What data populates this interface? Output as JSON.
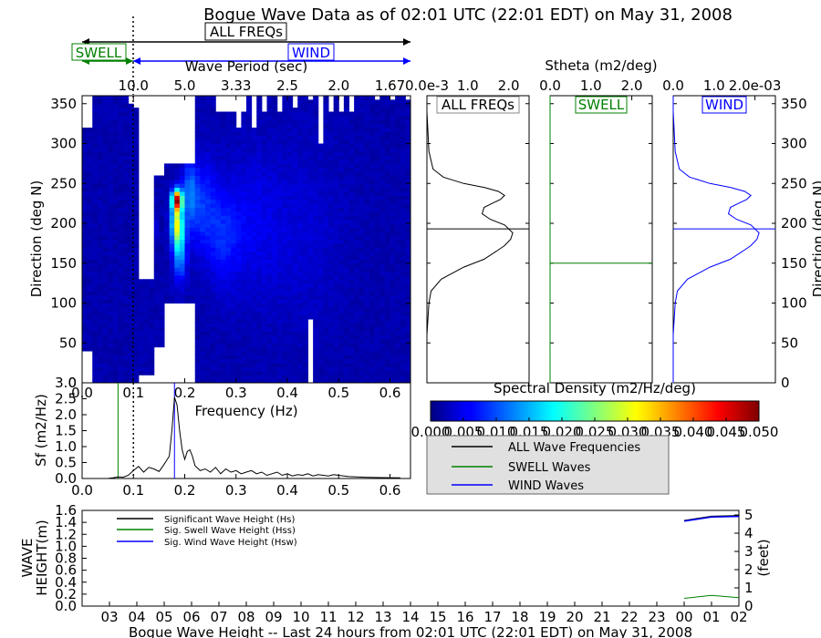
{
  "title": "Bogue Wave Data as of 02:01 UTC (22:01 EDT) on May 31, 2008",
  "colors": {
    "all": "#000000",
    "swell": "#008000",
    "wind": "#0000ff"
  },
  "arrows": {
    "all_label": "ALL FREQs",
    "swell_label": "SWELL",
    "wind_label": "WIND"
  },
  "chart_data": [
    {
      "id": "directional-spectrum",
      "type": "heatmap",
      "xlabel": "Frequency (Hz)",
      "ylabel": "Direction (deg N)",
      "top_axis_label": "Wave Period (sec)",
      "top_ticks": [
        "10.0",
        "5.0",
        "3.33",
        "2.5",
        "2.0",
        "1.67"
      ],
      "top_tick_freqs": [
        0.1,
        0.2,
        0.3,
        0.4,
        0.5,
        0.6
      ],
      "xlim": [
        0.0,
        0.64
      ],
      "ylim": [
        0,
        360
      ],
      "x_ticks": [
        "0.0",
        "0.1",
        "0.2",
        "0.3",
        "0.4",
        "0.5",
        "0.6"
      ],
      "y_ticks": [
        "0",
        "50",
        "100",
        "150",
        "200",
        "250",
        "300",
        "350"
      ],
      "colormap": "jet",
      "cmin": 0.0,
      "cmax": 0.05,
      "swell_separation_hz": 0.1,
      "peak": {
        "freq_hz": 0.185,
        "dir_deg": 228,
        "value": 0.04
      }
    },
    {
      "id": "frequency-spectrum",
      "type": "line",
      "xlabel": "Frequency (Hz)",
      "ylabel": "Sf (m2/Hz)",
      "xlim": [
        0.0,
        0.64
      ],
      "ylim": [
        0.0,
        3.0
      ],
      "x_ticks": [
        "0.0",
        "0.1",
        "0.2",
        "0.3",
        "0.4",
        "0.5",
        "0.6"
      ],
      "y_ticks": [
        "0.0",
        "0.5",
        "1.0",
        "1.5",
        "2.0",
        "2.5",
        "3.0"
      ],
      "markers": {
        "swell_peak_hz": 0.07,
        "wind_peak_hz": 0.18,
        "separation_hz": 0.1
      },
      "series": [
        {
          "name": "ALL Wave Frequencies",
          "x": [
            0.0,
            0.03,
            0.05,
            0.06,
            0.07,
            0.08,
            0.09,
            0.1,
            0.11,
            0.12,
            0.13,
            0.14,
            0.15,
            0.16,
            0.17,
            0.175,
            0.18,
            0.185,
            0.19,
            0.195,
            0.2,
            0.205,
            0.21,
            0.215,
            0.22,
            0.23,
            0.24,
            0.25,
            0.26,
            0.27,
            0.28,
            0.29,
            0.3,
            0.31,
            0.32,
            0.33,
            0.34,
            0.35,
            0.36,
            0.37,
            0.38,
            0.39,
            0.4,
            0.41,
            0.42,
            0.43,
            0.44,
            0.45,
            0.46,
            0.47,
            0.48,
            0.49,
            0.5,
            0.52,
            0.55,
            0.58,
            0.62
          ],
          "y": [
            0.0,
            0.0,
            0.0,
            0.02,
            0.05,
            0.04,
            0.1,
            0.25,
            0.38,
            0.2,
            0.35,
            0.3,
            0.22,
            0.45,
            0.7,
            1.5,
            2.55,
            2.3,
            1.5,
            0.9,
            0.6,
            0.85,
            0.9,
            0.7,
            0.4,
            0.25,
            0.3,
            0.2,
            0.35,
            0.15,
            0.3,
            0.2,
            0.25,
            0.15,
            0.2,
            0.25,
            0.15,
            0.2,
            0.1,
            0.15,
            0.2,
            0.1,
            0.15,
            0.08,
            0.12,
            0.1,
            0.15,
            0.08,
            0.12,
            0.1,
            0.08,
            0.12,
            0.1,
            0.06,
            0.04,
            0.03,
            0.02
          ]
        }
      ]
    },
    {
      "id": "stheta-all",
      "type": "line",
      "axis_label": "Stheta (m2/deg)",
      "panel_label": "ALL FREQs",
      "xlim": [
        0.0,
        0.0025
      ],
      "ylim": [
        0,
        360
      ],
      "x_ticks": [
        "0.0e-3",
        "1.0",
        "2.0"
      ],
      "x_tick_values": [
        0.0,
        0.001,
        0.002
      ],
      "mean_direction_deg": 193,
      "series": [
        {
          "name": "ALL Wave Frequencies",
          "x": [
            0.0,
            0.0,
            5e-05,
            0.0001,
            0.00035,
            0.0009,
            0.0014,
            0.0017,
            0.0019,
            0.00205,
            0.0021,
            0.0019,
            0.00155,
            0.00135,
            0.0014,
            0.0016,
            0.0018,
            0.0019,
            0.00175,
            0.0014,
            0.0009,
            0.0004,
            0.00015,
            5e-05,
            2e-05,
            0.0,
            0.0
          ],
          "y": [
            0,
            60,
            100,
            115,
            130,
            145,
            155,
            165,
            172,
            180,
            188,
            198,
            205,
            212,
            220,
            225,
            230,
            235,
            240,
            245,
            250,
            258,
            268,
            290,
            320,
            340,
            360
          ]
        }
      ]
    },
    {
      "id": "stheta-swell",
      "type": "line",
      "panel_label": "SWELL",
      "xlim": [
        0.0,
        2.5
      ],
      "ylim": [
        0,
        360
      ],
      "x_ticks": [
        "0.0",
        "1.0",
        "2.0"
      ],
      "x_tick_values": [
        0.0,
        1.0,
        2.0
      ],
      "mean_direction_deg": 150,
      "series": [
        {
          "name": "SWELL Waves",
          "x": [
            0.0,
            0.0,
            0.0,
            0.0
          ],
          "y": [
            0,
            145,
            165,
            360
          ]
        }
      ]
    },
    {
      "id": "stheta-wind",
      "type": "line",
      "panel_label": "WIND",
      "xlim": [
        0.0,
        0.0025
      ],
      "ylim": [
        0,
        360
      ],
      "x_ticks": [
        "0.0",
        "1.0",
        "2.0e-03"
      ],
      "x_tick_values": [
        0.0,
        0.001,
        0.002
      ],
      "mean_direction_deg": 193,
      "series": [
        {
          "name": "WIND Waves",
          "x": [
            0.0,
            0.0,
            5e-05,
            0.0001,
            0.00035,
            0.0009,
            0.0014,
            0.0017,
            0.0019,
            0.00205,
            0.0021,
            0.0019,
            0.00155,
            0.00135,
            0.0014,
            0.0016,
            0.0018,
            0.0019,
            0.00175,
            0.0014,
            0.0009,
            0.0004,
            0.00015,
            5e-05,
            2e-05,
            0.0,
            0.0
          ],
          "y": [
            0,
            60,
            100,
            115,
            130,
            145,
            155,
            165,
            172,
            180,
            188,
            198,
            205,
            212,
            220,
            225,
            230,
            235,
            240,
            245,
            250,
            258,
            268,
            290,
            320,
            340,
            360
          ]
        }
      ]
    },
    {
      "id": "colorbar",
      "type": "heatmap",
      "title": "Spectral Density (m2/Hz/deg)",
      "range": [
        0.0,
        0.05
      ],
      "ticks": [
        "0.000",
        "0.005",
        "0.010",
        "0.015",
        "0.020",
        "0.025",
        "0.030",
        "0.035",
        "0.040",
        "0.045",
        "0.050"
      ]
    },
    {
      "id": "wave-height",
      "type": "line",
      "xlabel": "Bogue Wave Height -- Last 24 hours from 02:01 UTC (22:01 EDT) on May 31, 2008",
      "ylabel": "WAVE HEIGHT(m)",
      "ylabel_lines": [
        "WAVE",
        "HEIGHT(m)"
      ],
      "ylabel_right": "(feet)",
      "x_ticks": [
        "03",
        "04",
        "05",
        "06",
        "07",
        "08",
        "09",
        "10",
        "11",
        "12",
        "13",
        "14",
        "15",
        "16",
        "17",
        "18",
        "19",
        "20",
        "21",
        "22",
        "23",
        "00",
        "01",
        "02"
      ],
      "xlim": [
        2.0,
        26.0
      ],
      "ylim": [
        0.0,
        1.6
      ],
      "y_ticks": [
        "0.0",
        "0.2",
        "0.4",
        "0.6",
        "0.8",
        "1.0",
        "1.2",
        "1.4",
        "1.6"
      ],
      "y_ticks_right": [
        "0",
        "1",
        "2",
        "3",
        "4",
        "5"
      ],
      "feet_per_meter": 3.28084,
      "series": [
        {
          "name": "Significant Wave Height (Hs)",
          "x": [
            24.0,
            25.0,
            26.0
          ],
          "y": [
            1.43,
            1.5,
            1.51
          ]
        },
        {
          "name": "Sig. Swell Wave Height (Hss)",
          "x": [
            24.0,
            25.0,
            26.0
          ],
          "y": [
            0.13,
            0.18,
            0.14
          ]
        },
        {
          "name": "Sig. Wind Wave Height (Hsw)",
          "x": [
            24.0,
            25.0,
            26.0
          ],
          "y": [
            1.42,
            1.49,
            1.5
          ]
        }
      ]
    }
  ],
  "spectrum_legend": [
    "ALL Wave Frequencies",
    "SWELL Waves",
    "WIND Waves"
  ],
  "height_legend": [
    "Significant Wave Height (Hs)",
    "Sig. Swell Wave Height (Hss)",
    "Sig. Wind Wave Height (Hsw)"
  ]
}
